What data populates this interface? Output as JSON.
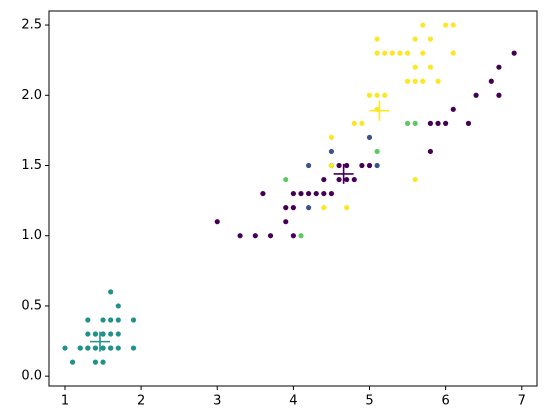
{
  "chart_data": {
    "type": "scatter",
    "xlim": [
      0.79,
      7.2
    ],
    "ylim": [
      -0.07,
      2.6
    ],
    "xticks": [
      1,
      2,
      3,
      4,
      5,
      6,
      7
    ],
    "yticks": [
      {
        "value": 0,
        "label": "0.0"
      },
      {
        "value": 0.5,
        "label": "0.5"
      },
      {
        "value": 1,
        "label": "1.0"
      },
      {
        "value": 1.5,
        "label": "1.5"
      },
      {
        "value": 2,
        "label": "2.0"
      },
      {
        "value": 2.5,
        "label": "2.5"
      }
    ],
    "series": [
      {
        "color": "#21918c",
        "marker": "dot",
        "x": [
          1.4,
          1.3,
          1.5,
          1.7,
          1.4,
          1.5,
          1.6,
          1.4,
          1.1,
          1.2,
          1.5,
          1.3,
          1.7,
          1.0,
          1.7,
          1.9,
          1.6,
          1.6,
          1.9,
          1.3,
          1.5,
          1.2,
          1.4,
          1.6,
          1.5,
          1.3,
          1.4,
          1.5,
          1.6,
          1.7
        ],
        "values": [
          0.2,
          0.2,
          0.2,
          0.4,
          0.3,
          0.1,
          0.2,
          0.1,
          0.1,
          0.2,
          0.4,
          0.4,
          0.3,
          0.2,
          0.5,
          0.2,
          0.4,
          0.6,
          0.4,
          0.3,
          0.3,
          0.2,
          0.2,
          0.2,
          0.2,
          0.2,
          0.3,
          0.3,
          0.3,
          0.2
        ]
      },
      {
        "color": "#440154",
        "marker": "dot",
        "x": [
          3.0,
          3.3,
          3.5,
          3.7,
          3.6,
          3.9,
          3.9,
          4.0,
          4.0,
          4.1,
          4.2,
          4.3,
          4.4,
          4.4,
          4.5,
          4.6,
          4.6,
          4.7,
          4.7,
          4.8,
          4.9,
          5.0,
          5.8,
          5.9,
          6.0,
          6.1,
          5.8,
          6.3,
          6.4,
          6.6,
          6.7,
          6.7,
          6.9,
          4.5,
          4.0
        ],
        "values": [
          1.1,
          1.0,
          1.0,
          1.0,
          1.3,
          1.1,
          1.2,
          1.0,
          1.3,
          1.3,
          1.3,
          1.3,
          1.3,
          1.4,
          1.5,
          1.4,
          1.5,
          1.4,
          1.5,
          1.4,
          1.5,
          1.5,
          1.8,
          1.8,
          1.8,
          1.9,
          1.6,
          1.8,
          2.0,
          2.1,
          2.2,
          2.0,
          2.3,
          1.3,
          1.2
        ]
      },
      {
        "color": "#fde725",
        "marker": "dot",
        "x": [
          5.0,
          5.1,
          5.1,
          5.2,
          5.1,
          5.1,
          5.2,
          5.3,
          5.4,
          5.5,
          5.6,
          5.7,
          5.8,
          5.6,
          5.6,
          5.7,
          5.8,
          5.9,
          6.0,
          6.1,
          6.1,
          5.7,
          5.5,
          4.9,
          4.8,
          5.6,
          4.5,
          4.7,
          4.4,
          4.5
        ],
        "values": [
          2.0,
          1.9,
          2.0,
          2.0,
          2.3,
          2.4,
          2.3,
          2.3,
          2.3,
          2.1,
          2.1,
          2.1,
          2.2,
          2.2,
          2.4,
          2.5,
          2.4,
          2.1,
          2.5,
          2.5,
          2.3,
          2.3,
          2.3,
          1.8,
          1.8,
          1.4,
          1.7,
          1.2,
          1.2,
          1.5
        ]
      },
      {
        "color": "#5ec962",
        "marker": "dot",
        "x": [
          4.1,
          3.9,
          5.6,
          5.5,
          5.1
        ],
        "values": [
          1.0,
          1.4,
          1.8,
          1.8,
          1.6
        ]
      },
      {
        "color": "#3b528b",
        "marker": "dot",
        "x": [
          4.2,
          4.2,
          4.5,
          5.0,
          5.1
        ],
        "values": [
          1.5,
          1.2,
          1.6,
          1.7,
          1.5
        ]
      },
      {
        "color": "#21918c",
        "marker": "plus",
        "x": [
          1.46
        ],
        "values": [
          0.246
        ]
      },
      {
        "color": "#440154",
        "marker": "plus",
        "x": [
          4.66
        ],
        "values": [
          1.44
        ]
      },
      {
        "color": "#fde725",
        "marker": "plus",
        "x": [
          5.13
        ],
        "values": [
          1.89
        ]
      }
    ]
  }
}
